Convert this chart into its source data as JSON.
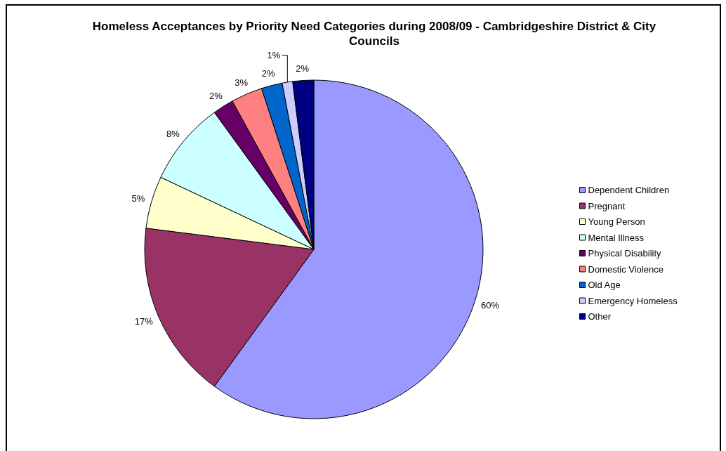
{
  "chart_data": {
    "type": "pie",
    "title": "Homeless Acceptances by Priority Need Categories during 2008/09 - Cambridgeshire District & City Councils",
    "categories": [
      "Dependent Children",
      "Pregnant",
      "Young Person",
      "Mental Illness",
      "Physical Disability",
      "Domestic Violence",
      "Old Age",
      "Emergency Homeless",
      "Other"
    ],
    "values": [
      60,
      17,
      5,
      8,
      2,
      3,
      2,
      1,
      2
    ],
    "colors": [
      "#9999ff",
      "#993366",
      "#ffffcc",
      "#ccffff",
      "#660066",
      "#ff8080",
      "#0066cc",
      "#ccccff",
      "#000080"
    ],
    "value_labels": [
      "60%",
      "17%",
      "5%",
      "8%",
      "2%",
      "3%",
      "2%",
      "1%",
      "2%"
    ],
    "legend": "right"
  }
}
